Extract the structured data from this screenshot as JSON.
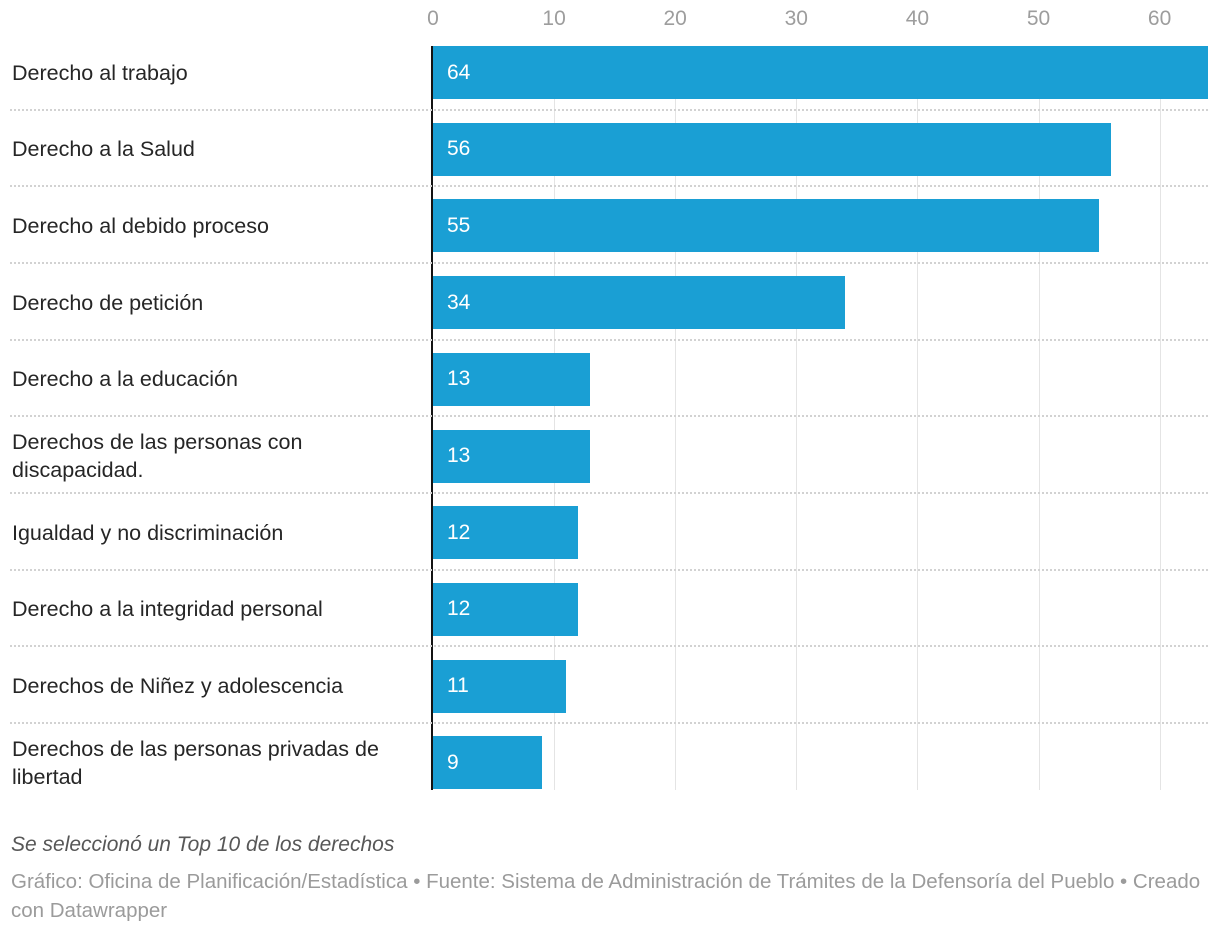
{
  "chart_data": {
    "type": "bar",
    "orientation": "horizontal",
    "categories": [
      "Derecho al trabajo",
      "Derecho a la Salud",
      "Derecho al debido proceso",
      "Derecho de petición",
      "Derecho a la educación",
      "Derechos de las personas con discapacidad.",
      "Igualdad y no discriminación",
      "Derecho a la integridad personal",
      "Derechos de Niñez y adolescencia",
      "Derechos de las personas privadas de libertad"
    ],
    "values": [
      64,
      56,
      55,
      34,
      13,
      13,
      12,
      12,
      11,
      9
    ],
    "x_ticks": [
      0,
      10,
      20,
      30,
      40,
      50,
      60
    ],
    "xlim": [
      0,
      64
    ],
    "grid": "vertical gridlines on, dotted row separators",
    "legend": "none",
    "value_labels": "inside bar start, white",
    "colors": {
      "bar": "#1a9fd4",
      "value_label": "#ffffff",
      "axis_tick_label": "#9d9d9d",
      "category_label": "#262626",
      "gridline": "#e4e4e4",
      "zero_axis": "#131313",
      "row_separator": "#d2d2d2"
    }
  },
  "footer": {
    "note": "Se seleccionó un Top 10 de los derechos",
    "attribution": "Gráfico: Oficina de Planificación/Estadística • Fuente: Sistema de Administración de Trámites de la Defensoría del Pueblo • Creado con Datawrapper"
  }
}
